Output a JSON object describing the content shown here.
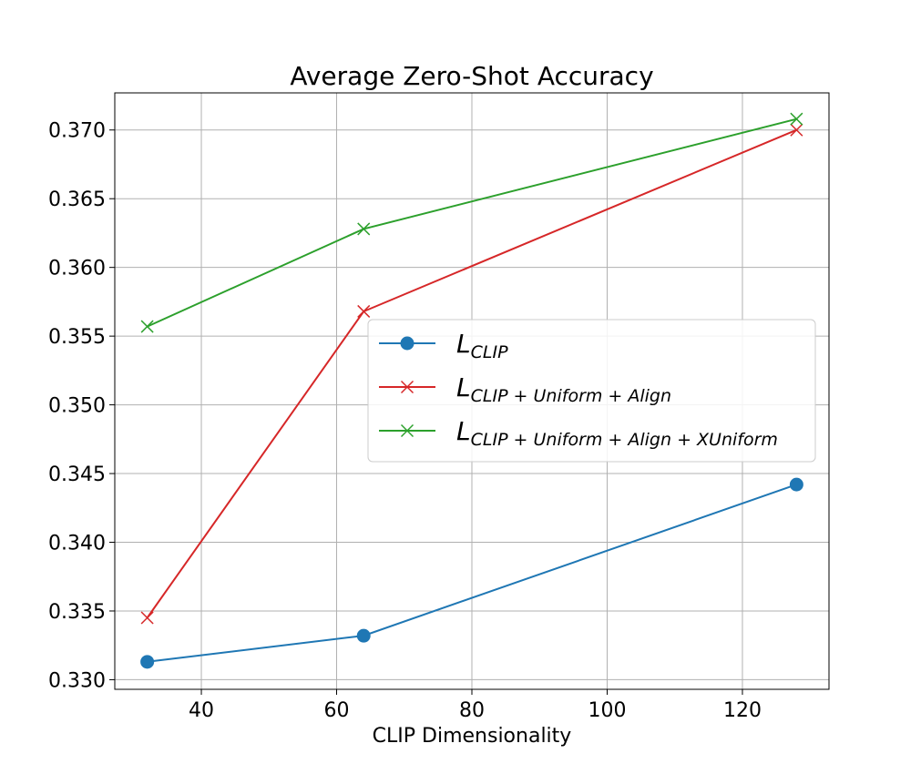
{
  "chart_data": {
    "type": "line",
    "title": "Average Zero-Shot Accuracy",
    "xlabel": "CLIP Dimensionality",
    "ylabel": "",
    "xlim": [
      27.2,
      132.8
    ],
    "ylim": [
      0.3293,
      0.3727
    ],
    "xticks": [
      "40",
      "60",
      "80",
      "100",
      "120"
    ],
    "yticks": [
      "0.330",
      "0.335",
      "0.340",
      "0.345",
      "0.350",
      "0.355",
      "0.360",
      "0.365",
      "0.370"
    ],
    "grid": true,
    "legend_position": "center-right",
    "x": [
      32,
      64,
      128
    ],
    "series": [
      {
        "name_main": "L",
        "name_sub": "CLIP",
        "color": "#1f77b4",
        "marker": "circle",
        "values": [
          0.3313,
          0.3332,
          0.3442
        ]
      },
      {
        "name_main": "L",
        "name_sub": "CLIP + Uniform + Align",
        "color": "#d62728",
        "marker": "x",
        "values": [
          0.3345,
          0.3568,
          0.37
        ]
      },
      {
        "name_main": "L",
        "name_sub": "CLIP + Uniform + Align + XUniform",
        "color": "#2ca02c",
        "marker": "x",
        "values": [
          0.3557,
          0.3628,
          0.3708
        ]
      }
    ]
  }
}
